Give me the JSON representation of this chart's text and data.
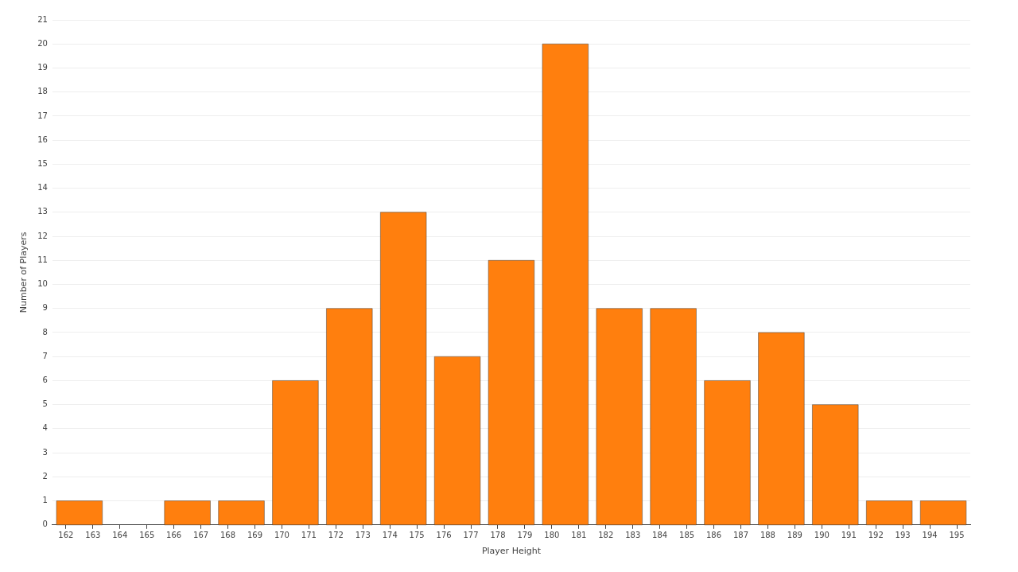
{
  "chart_data": {
    "type": "histogram",
    "xlabel": "Player Height",
    "ylabel": "Number of Players",
    "bins": [
      161.5,
      163.5,
      165.5,
      167.5,
      169.5,
      171.5,
      173.5,
      175.5,
      177.5,
      179.5,
      181.5,
      183.5,
      185.5,
      187.5,
      189.5,
      191.5,
      193.5,
      195.5
    ],
    "values": [
      1,
      0,
      1,
      1,
      6,
      9,
      13,
      7,
      11,
      20,
      9,
      9,
      6,
      8,
      5,
      1,
      1
    ],
    "color": "#ff7f0e",
    "xlim": [
      161.5,
      195.5
    ],
    "xticks": [
      162,
      163,
      164,
      165,
      166,
      167,
      168,
      169,
      170,
      171,
      172,
      173,
      174,
      175,
      176,
      177,
      178,
      179,
      180,
      181,
      182,
      183,
      184,
      185,
      186,
      187,
      188,
      189,
      190,
      191,
      192,
      193,
      194,
      195
    ],
    "ylim": [
      0,
      21
    ],
    "yticks": [
      0,
      1,
      2,
      3,
      4,
      5,
      6,
      7,
      8,
      9,
      10,
      11,
      12,
      13,
      14,
      15,
      16,
      17,
      18,
      19,
      20,
      21
    ],
    "grid": "y",
    "legend": false
  }
}
